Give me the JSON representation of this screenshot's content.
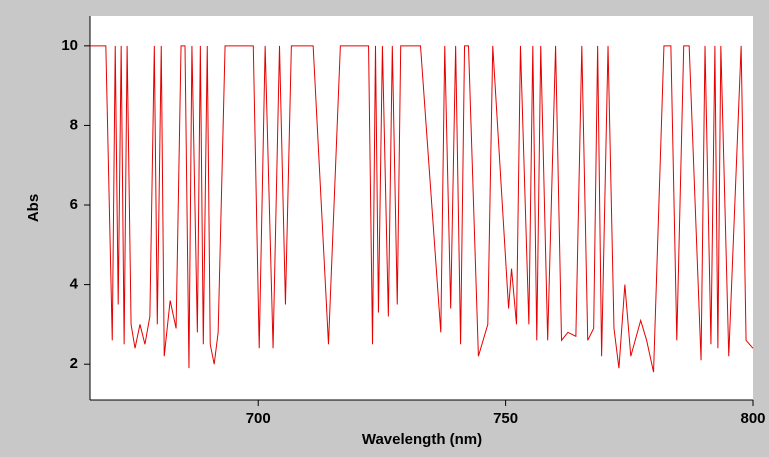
{
  "chart_data": {
    "type": "line",
    "xlabel": "Wavelength (nm)",
    "ylabel": "Abs",
    "xlim": [
      666,
      800
    ],
    "ylim": [
      1.1,
      10.75
    ],
    "xticks": [
      700,
      750,
      800
    ],
    "yticks": [
      2,
      4,
      6,
      8,
      10
    ],
    "grid": false,
    "series": [
      {
        "color": "#e60000",
        "x": [
          666.0,
          669.2,
          670.5,
          671.1,
          671.7,
          672.3,
          672.9,
          673.5,
          674.3,
          675.1,
          676.1,
          677.1,
          678.1,
          679.0,
          679.6,
          680.4,
          681.0,
          682.2,
          683.4,
          684.4,
          685.2,
          686.0,
          686.6,
          687.7,
          688.3,
          688.9,
          689.7,
          690.3,
          691.1,
          691.9,
          693.3,
          699.0,
          700.2,
          701.4,
          703.0,
          704.3,
          705.5,
          706.7,
          711.1,
          714.2,
          716.6,
          722.3,
          723.1,
          723.7,
          724.3,
          725.1,
          726.3,
          727.1,
          728.1,
          728.8,
          732.8,
          736.9,
          737.7,
          738.9,
          739.9,
          740.9,
          741.7,
          742.5,
          744.5,
          746.4,
          747.4,
          750.6,
          751.2,
          752.2,
          753.0,
          754.7,
          755.5,
          756.3,
          757.1,
          758.5,
          760.1,
          761.3,
          762.6,
          764.2,
          765.4,
          766.6,
          767.8,
          768.6,
          769.4,
          770.7,
          771.9,
          772.9,
          774.1,
          775.3,
          777.3,
          778.5,
          779.9,
          782.0,
          783.4,
          784.6,
          786.0,
          787.1,
          789.5,
          790.3,
          791.5,
          792.3,
          792.9,
          793.5,
          795.1,
          797.6,
          798.6,
          800.0
        ],
        "values": [
          10,
          10,
          2.6,
          10,
          3.5,
          10,
          2.5,
          10,
          3.0,
          2.4,
          3.0,
          2.5,
          3.2,
          10,
          3.0,
          10,
          2.2,
          3.6,
          2.9,
          10,
          10,
          1.9,
          10,
          2.8,
          10,
          2.5,
          10,
          2.5,
          2.0,
          2.8,
          10,
          10,
          2.4,
          10,
          2.4,
          10,
          3.5,
          10,
          10,
          2.5,
          10,
          10,
          2.5,
          10,
          3.3,
          10,
          3.2,
          10,
          3.5,
          10,
          10,
          2.8,
          10,
          3.4,
          10,
          2.5,
          10,
          10,
          2.2,
          3.0,
          10,
          3.4,
          4.4,
          3.0,
          10,
          3.0,
          10,
          2.6,
          10,
          2.6,
          10,
          2.6,
          2.8,
          2.7,
          10,
          2.6,
          2.9,
          10,
          2.2,
          10,
          2.9,
          1.9,
          4.0,
          2.2,
          3.1,
          2.6,
          1.8,
          10,
          10,
          2.6,
          10,
          10,
          2.1,
          10,
          2.5,
          10,
          2.4,
          10,
          2.2,
          10,
          2.6,
          2.4
        ]
      }
    ]
  }
}
